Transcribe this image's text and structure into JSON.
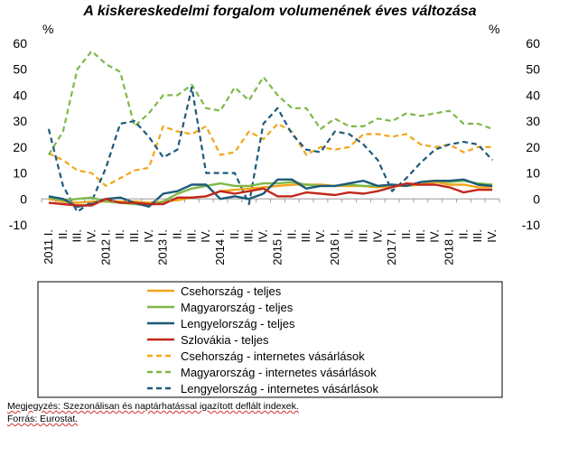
{
  "title": "A kiskereskedelmi forgalom volumenének éves változása",
  "footnote": {
    "note": "Megjegyzés: Szezonálisan és naptárhatással igazított deflált indexek.",
    "source": "Forrás: Eurostat."
  },
  "chart_data": {
    "type": "line",
    "title": "A kiskereskedelmi forgalom volumenének éves változása",
    "ylabel_left": "%",
    "ylabel_right": "%",
    "ylim": [
      -10,
      60
    ],
    "yticks": [
      -10,
      0,
      10,
      20,
      30,
      40,
      50,
      60
    ],
    "grid": false,
    "legend_position": "bottom",
    "categories": [
      "2011 I.",
      "II.",
      "III.",
      "IV.",
      "2012 I.",
      "II.",
      "III.",
      "IV.",
      "2013 I.",
      "II.",
      "III.",
      "IV.",
      "2014 I.",
      "II.",
      "III.",
      "IV.",
      "2015 I.",
      "II.",
      "III.",
      "IV.",
      "2016 I.",
      "II.",
      "III.",
      "IV.",
      "2017 I.",
      "II.",
      "III.",
      "IV.",
      "2018 I.",
      "II.",
      "III.",
      "IV."
    ],
    "series": [
      {
        "name": "Csehország - teljes",
        "color": "#F2A51A",
        "dash": false,
        "values": [
          0,
          -1,
          -1.5,
          -1,
          -1,
          -1,
          -1,
          -1.5,
          -1,
          -0.5,
          0.5,
          1,
          3,
          3.5,
          4,
          4.5,
          5,
          5.5,
          5.5,
          5.5,
          5,
          5,
          5,
          4.5,
          5,
          5,
          5.5,
          6.5,
          5.5,
          5.5,
          4.5,
          4.5
        ]
      },
      {
        "name": "Magyarország - teljes",
        "color": "#7EB848",
        "dash": false,
        "values": [
          0.5,
          -0.5,
          0,
          0.5,
          -1,
          -1.5,
          -2,
          -2.5,
          -1,
          2,
          4,
          5,
          6,
          5,
          5,
          6,
          6,
          6.5,
          5.5,
          5,
          5,
          5.5,
          5,
          5,
          5.5,
          5,
          6.5,
          7,
          6.5,
          7,
          6,
          5.5
        ]
      },
      {
        "name": "Lengyelország - teljes",
        "color": "#1D5A7A",
        "dash": false,
        "values": [
          1,
          0,
          -3,
          -2,
          0,
          0.5,
          -1.5,
          -3,
          2,
          3,
          5.5,
          5.5,
          0,
          1,
          0,
          2,
          7.5,
          7.5,
          4,
          5,
          5,
          6,
          7,
          5,
          5.5,
          5,
          6.5,
          7,
          7,
          7.5,
          5.5,
          5
        ]
      },
      {
        "name": "Szlovákia - teljes",
        "color": "#C0281A",
        "dash": false,
        "values": [
          -1.5,
          -2,
          -2.5,
          -2.5,
          0,
          -1.5,
          -1.5,
          -2,
          -2,
          0.5,
          0.5,
          1,
          3,
          2,
          3,
          4,
          1,
          1,
          2.5,
          2,
          1.5,
          2.5,
          2,
          3,
          4.5,
          6,
          5.5,
          5.5,
          4.5,
          2.5,
          3.5,
          3.5
        ]
      },
      {
        "name": "Csehország - internetes vásárlások",
        "color": "#F2A51A",
        "dash": true,
        "values": [
          17.5,
          15,
          11,
          10,
          5,
          8,
          11,
          12,
          28,
          26,
          25,
          28,
          17,
          18,
          26,
          23,
          29,
          26,
          17,
          20,
          19,
          20,
          25,
          25,
          24,
          25,
          21,
          20,
          21,
          18,
          20,
          20
        ]
      },
      {
        "name": "Magyarország - internetes vásárlások",
        "color": "#7EB848",
        "dash": true,
        "values": [
          17,
          26,
          50,
          57,
          52,
          49,
          28,
          33,
          40,
          40,
          44,
          35,
          34,
          43,
          38,
          47,
          40,
          35,
          35,
          27,
          31,
          28,
          28,
          31,
          30,
          33,
          32,
          33,
          34,
          29,
          29,
          27
        ]
      },
      {
        "name": "Lengyelország - internetes vásárlások",
        "color": "#1D5A7A",
        "dash": true,
        "values": [
          27,
          5,
          -5,
          -1,
          12,
          29,
          30,
          24,
          16,
          19,
          43,
          10,
          10,
          10,
          -2,
          29,
          35,
          25,
          19,
          18,
          26,
          25,
          21,
          15,
          3,
          8,
          14,
          19,
          21,
          22,
          21,
          15
        ]
      }
    ]
  }
}
